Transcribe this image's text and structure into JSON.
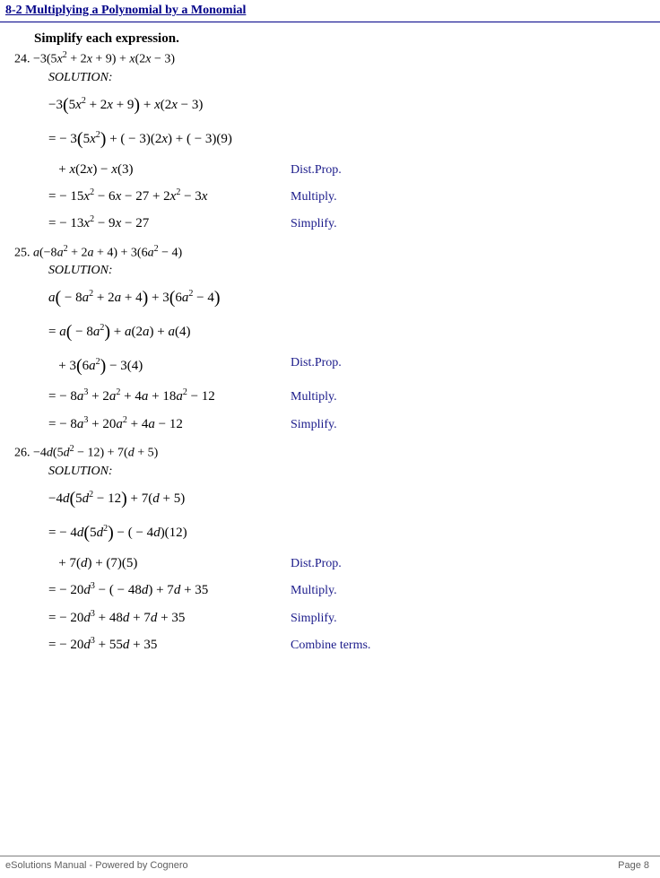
{
  "header": {
    "title": "8-2 Multiplying a Polynomial by a Monomial"
  },
  "instruction": "Simplify each expression.",
  "colors": {
    "header_text": "#000088",
    "header_rule": "#000088",
    "label_text": "#1a1a8a",
    "body_text": "#000000",
    "footer_text": "#606060",
    "footer_rule": "#808080",
    "background": "#ffffff"
  },
  "fonts": {
    "body_family": "Times New Roman",
    "body_size_pt": 11,
    "header_size_pt": 11,
    "footer_family": "Arial",
    "footer_size_pt": 8
  },
  "labels": {
    "solution": "SOLUTION:",
    "dist": "Dist.Prop.",
    "multiply": "Multiply.",
    "simplify": "Simplify.",
    "combine": "Combine terms."
  },
  "problems": [
    {
      "number": "24.",
      "given_html": "−3(5<i>x</i><sup>2</sup> + 2<i>x</i> + 9) + <i>x</i>(2<i>x</i> − 3)",
      "steps": [
        {
          "expr_html": "−3<span class='bigp'>(</span>5<i>x</i><sup>2</sup> + 2<i>x</i> + 9<span class='bigp'>)</span> + <i>x</i>(2<i>x</i> − 3)",
          "label": ""
        },
        {
          "expr_html": "= − 3<span class='bigp'>(</span>5<i>x</i><sup>2</sup><span class='bigp'>)</span> + ( − 3)(2<i>x</i>) + ( − 3)(9)",
          "label": ""
        },
        {
          "expr_html": "&nbsp;&nbsp;&nbsp;+ <i>x</i>(2<i>x</i>) − <i>x</i>(3)",
          "label": "dist"
        },
        {
          "expr_html": "= − 15<i>x</i><sup>2</sup> − 6<i>x</i> − 27 + 2<i>x</i><sup>2</sup> − 3<i>x</i>",
          "label": "multiply"
        },
        {
          "expr_html": "= − 13<i>x</i><sup>2</sup> − 9<i>x</i> − 27",
          "label": "simplify"
        }
      ]
    },
    {
      "number": "25.",
      "given_html": "<i>a</i>(−8<i>a</i><sup>2</sup> + 2<i>a</i> + 4) + 3(6<i>a</i><sup>2</sup> − 4)",
      "steps": [
        {
          "expr_html": "<i>a</i><span class='bigp'>(</span> − 8<i>a</i><sup>2</sup> + 2<i>a</i> + 4<span class='bigp'>)</span> + 3<span class='bigp'>(</span>6<i>a</i><sup>2</sup> − 4<span class='bigp'>)</span>",
          "label": ""
        },
        {
          "expr_html": "= <i>a</i><span class='bigp'>(</span> − 8<i>a</i><sup>2</sup><span class='bigp'>)</span> + <i>a</i>(2<i>a</i>) + <i>a</i>(4)",
          "label": ""
        },
        {
          "expr_html": "&nbsp;&nbsp;&nbsp;+ 3<span class='bigp'>(</span>6<i>a</i><sup>2</sup><span class='bigp'>)</span> − 3(4)",
          "label": "dist"
        },
        {
          "expr_html": "= − 8<i>a</i><sup>3</sup> + 2<i>a</i><sup>2</sup> + 4<i>a</i> + 18<i>a</i><sup>2</sup> − 12",
          "label": "multiply"
        },
        {
          "expr_html": "= − 8<i>a</i><sup>3</sup> + 20<i>a</i><sup>2</sup> + 4<i>a</i> − 12",
          "label": "simplify"
        }
      ]
    },
    {
      "number": "26.",
      "given_html": "−4<i>d</i>(5<i>d</i><sup>2</sup> − 12) + 7(<i>d</i> + 5)",
      "steps": [
        {
          "expr_html": "−4<i>d</i><span class='bigp'>(</span>5<i>d</i><sup>2</sup> − 12<span class='bigp'>)</span> + 7(<i>d</i> + 5)",
          "label": ""
        },
        {
          "expr_html": "= − 4<i>d</i><span class='bigp'>(</span>5<i>d</i><sup>2</sup><span class='bigp'>)</span> − ( − 4<i>d</i>)(12)",
          "label": ""
        },
        {
          "expr_html": "&nbsp;&nbsp;&nbsp;+ 7(<i>d</i>) + (7)(5)",
          "label": "dist"
        },
        {
          "expr_html": "= − 20<i>d</i><sup>3</sup> − ( − 48<i>d</i>) + 7<i>d</i> + 35",
          "label": "multiply"
        },
        {
          "expr_html": "= − 20<i>d</i><sup>3</sup> + 48<i>d</i> + 7<i>d</i> + 35",
          "label": "simplify"
        },
        {
          "expr_html": "= − 20<i>d</i><sup>3</sup> + 55<i>d</i> + 35",
          "label": "combine"
        }
      ]
    }
  ],
  "footer": {
    "left": "eSolutions Manual - Powered by Cognero",
    "right": "Page 8"
  }
}
